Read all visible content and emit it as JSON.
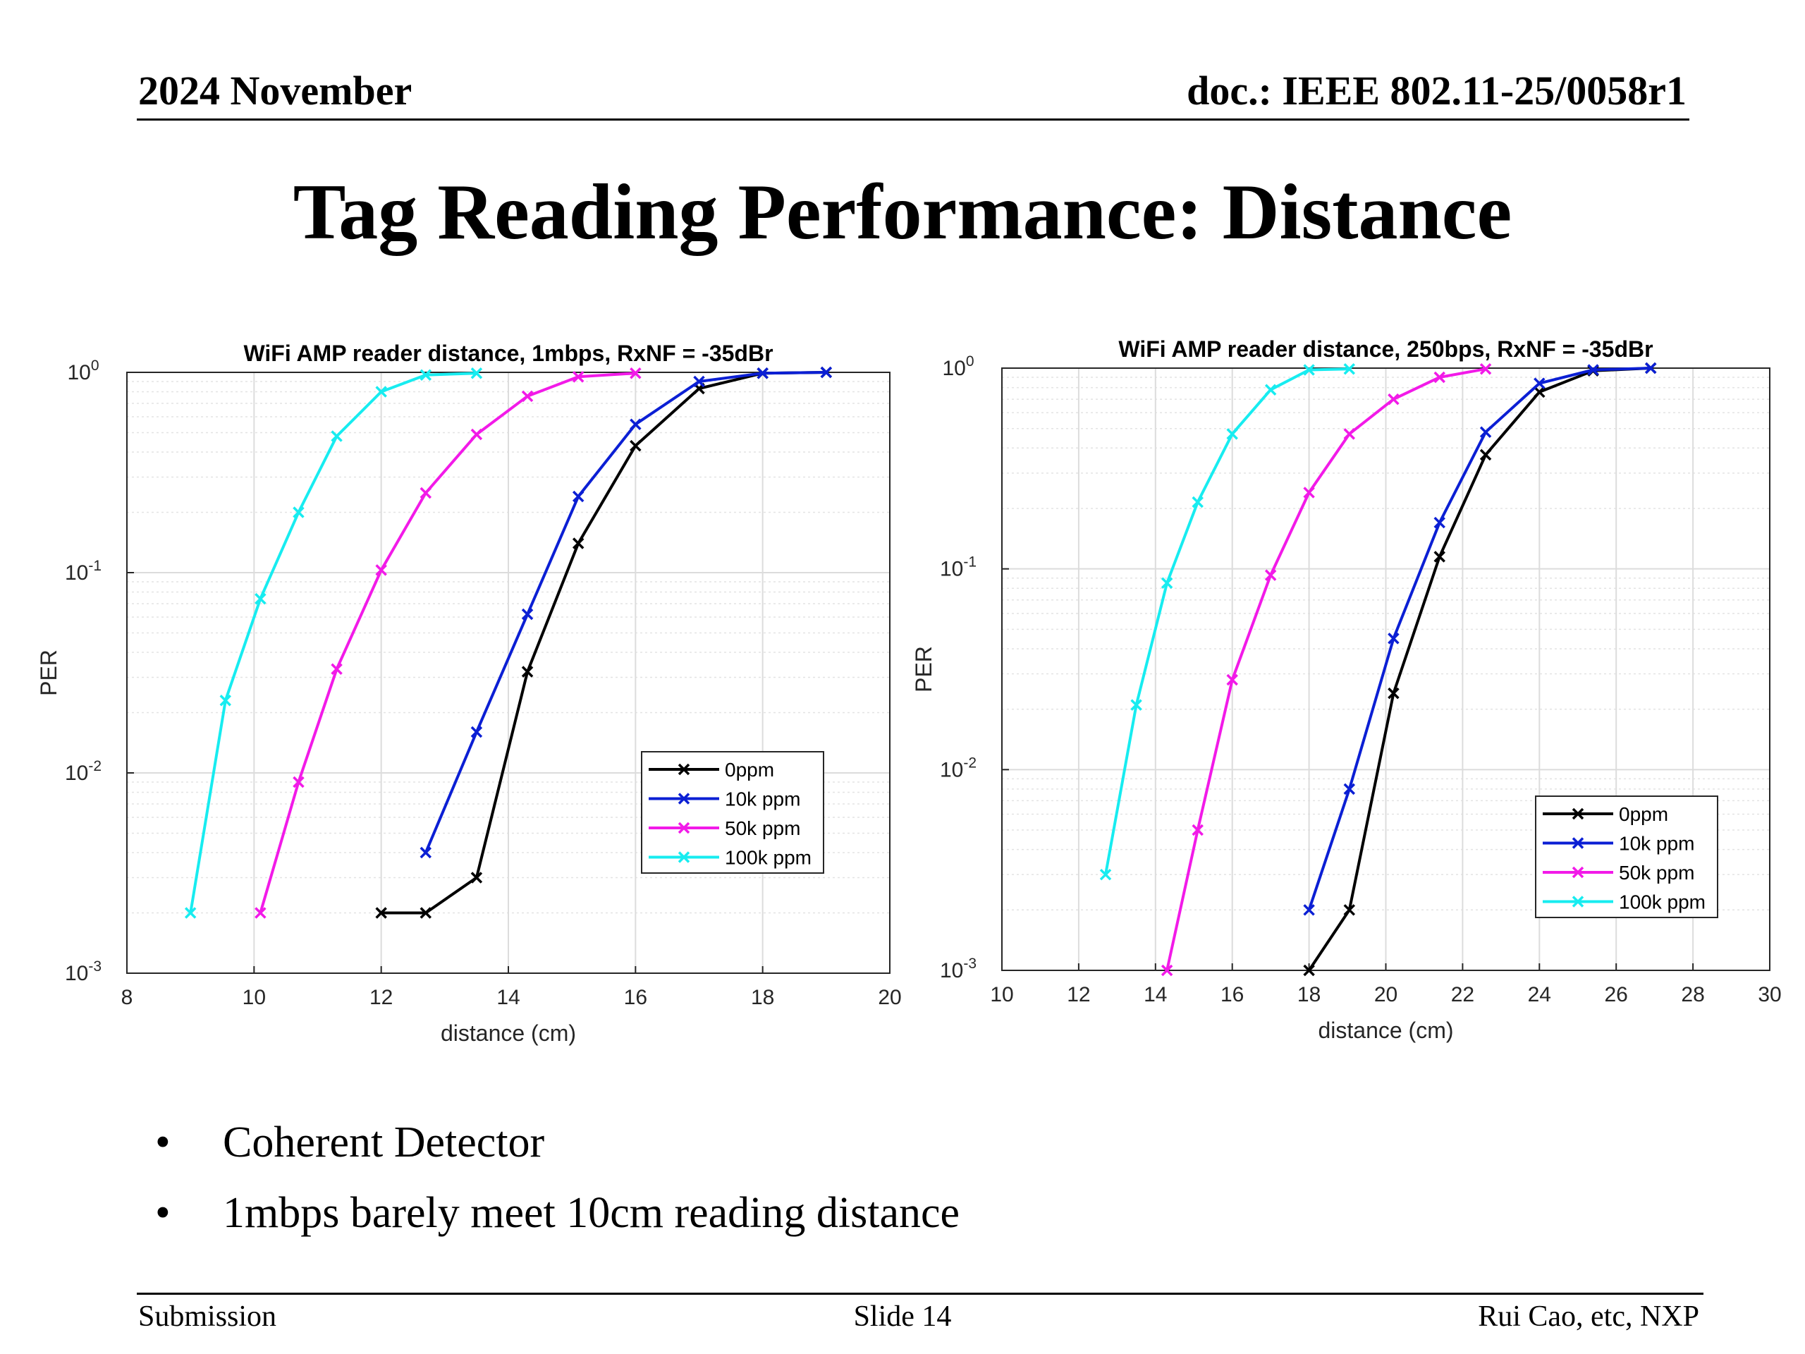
{
  "header": {
    "date": "2024 November",
    "doc": "doc.: IEEE 802.11-25/0058r1"
  },
  "title": "Tag Reading Performance: Distance",
  "bullets": [
    {
      "text": "Coherent Detector"
    },
    {
      "text": "1mbps barely meet 10cm reading distance"
    }
  ],
  "footer": {
    "left": "Submission",
    "center": "Slide 14",
    "right": "Rui Cao, etc, NXP"
  },
  "series_colors": {
    "0ppm": "#000000",
    "10k ppm": "#0b1fd4",
    "50k ppm": "#f21ae8",
    "100k ppm": "#17ecf0"
  },
  "chart_data": [
    {
      "type": "line",
      "title": "WiFi AMP reader distance, 1mbps, RxNF = -35dBr",
      "xlabel": "distance (cm)",
      "ylabel": "PER",
      "xlim": [
        8,
        20
      ],
      "ylim": [
        0.001,
        1
      ],
      "yscale": "log",
      "xticks": [
        "8",
        "10",
        "12",
        "14",
        "16",
        "18",
        "20"
      ],
      "yticks": [
        {
          "base": "10",
          "exp": "0"
        },
        {
          "base": "10",
          "exp": "-1"
        },
        {
          "base": "10",
          "exp": "-2"
        },
        {
          "base": "10",
          "exp": "-3"
        }
      ],
      "grid": true,
      "marker": "x",
      "legend_position": "lower-right",
      "series": [
        {
          "name": "0ppm",
          "points": [
            [
              12.0,
              0.002
            ],
            [
              12.7,
              0.002
            ],
            [
              13.5,
              0.003
            ],
            [
              14.3,
              0.032
            ],
            [
              15.1,
              0.14
            ],
            [
              16.0,
              0.43
            ],
            [
              17.0,
              0.83
            ],
            [
              18.0,
              0.99
            ],
            [
              19.0,
              1.0
            ]
          ]
        },
        {
          "name": "10k ppm",
          "points": [
            [
              12.7,
              0.004
            ],
            [
              13.5,
              0.016
            ],
            [
              14.3,
              0.062
            ],
            [
              15.1,
              0.24
            ],
            [
              16.0,
              0.55
            ],
            [
              17.0,
              0.9
            ],
            [
              18.0,
              0.99
            ],
            [
              19.0,
              1.0
            ]
          ]
        },
        {
          "name": "50k ppm",
          "points": [
            [
              10.1,
              0.002
            ],
            [
              10.7,
              0.009
            ],
            [
              11.3,
              0.033
            ],
            [
              12.0,
              0.103
            ],
            [
              12.7,
              0.25
            ],
            [
              13.5,
              0.49
            ],
            [
              14.3,
              0.76
            ],
            [
              15.1,
              0.95
            ],
            [
              16.0,
              0.99
            ]
          ]
        },
        {
          "name": "100k ppm",
          "points": [
            [
              9.0,
              0.002
            ],
            [
              9.55,
              0.023
            ],
            [
              10.1,
              0.074
            ],
            [
              10.7,
              0.2
            ],
            [
              11.3,
              0.48
            ],
            [
              12.0,
              0.8
            ],
            [
              12.7,
              0.97
            ],
            [
              13.5,
              0.99
            ]
          ]
        }
      ]
    },
    {
      "type": "line",
      "title": "WiFi AMP reader distance, 250bps, RxNF = -35dBr",
      "xlabel": "distance (cm)",
      "ylabel": "PER",
      "xlim": [
        10,
        30
      ],
      "ylim": [
        0.001,
        1
      ],
      "yscale": "log",
      "xticks": [
        "10",
        "12",
        "14",
        "16",
        "18",
        "20",
        "22",
        "24",
        "26",
        "28",
        "30"
      ],
      "yticks": [
        {
          "base": "10",
          "exp": "0"
        },
        {
          "base": "10",
          "exp": "-1"
        },
        {
          "base": "10",
          "exp": "-2"
        },
        {
          "base": "10",
          "exp": "-3"
        }
      ],
      "grid": true,
      "marker": "x",
      "legend_position": "lower-right",
      "series": [
        {
          "name": "0ppm",
          "points": [
            [
              18.0,
              0.001
            ],
            [
              19.05,
              0.002
            ],
            [
              20.2,
              0.024
            ],
            [
              21.4,
              0.115
            ],
            [
              22.6,
              0.37
            ],
            [
              24.0,
              0.76
            ],
            [
              25.4,
              0.97
            ],
            [
              26.9,
              1.0
            ]
          ]
        },
        {
          "name": "10k ppm",
          "points": [
            [
              18.0,
              0.002
            ],
            [
              19.05,
              0.008
            ],
            [
              20.2,
              0.045
            ],
            [
              21.4,
              0.17
            ],
            [
              22.6,
              0.48
            ],
            [
              24.0,
              0.84
            ],
            [
              25.4,
              0.98
            ],
            [
              26.9,
              1.0
            ]
          ]
        },
        {
          "name": "50k ppm",
          "points": [
            [
              14.3,
              0.001
            ],
            [
              15.1,
              0.005
            ],
            [
              16.0,
              0.028
            ],
            [
              17.0,
              0.093
            ],
            [
              18.0,
              0.24
            ],
            [
              19.05,
              0.47
            ],
            [
              20.2,
              0.7
            ],
            [
              21.4,
              0.9
            ],
            [
              22.6,
              0.99
            ]
          ]
        },
        {
          "name": "100k ppm",
          "points": [
            [
              12.7,
              0.003
            ],
            [
              13.5,
              0.021
            ],
            [
              14.3,
              0.085
            ],
            [
              15.1,
              0.215
            ],
            [
              16.0,
              0.47
            ],
            [
              17.0,
              0.78
            ],
            [
              18.0,
              0.98
            ],
            [
              19.05,
              0.99
            ]
          ]
        }
      ]
    }
  ]
}
